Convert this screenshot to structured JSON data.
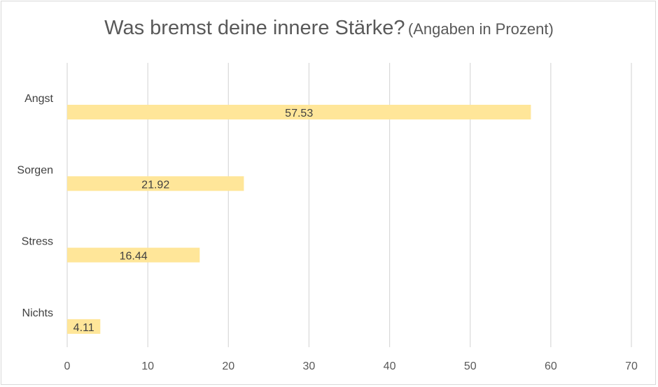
{
  "chart_data": {
    "type": "bar",
    "orientation": "horizontal",
    "title": "Was bremst deine innere Stärke?",
    "subtitle": "(Angaben in Prozent)",
    "categories": [
      "Angst",
      "Sorgen",
      "Stress",
      "Nichts"
    ],
    "values": [
      57.53,
      21.92,
      16.44,
      4.11
    ],
    "data_labels": [
      "57.53",
      "21.92",
      "16.44",
      "4.11"
    ],
    "xlim": [
      0,
      70
    ],
    "xticks": [
      0,
      10,
      20,
      30,
      40,
      50,
      60,
      70
    ],
    "xtick_labels": [
      "0",
      "10",
      "20",
      "30",
      "40",
      "50",
      "60",
      "70"
    ],
    "grid": "vertical",
    "legend": "none",
    "bar_color": "#FFE699"
  }
}
